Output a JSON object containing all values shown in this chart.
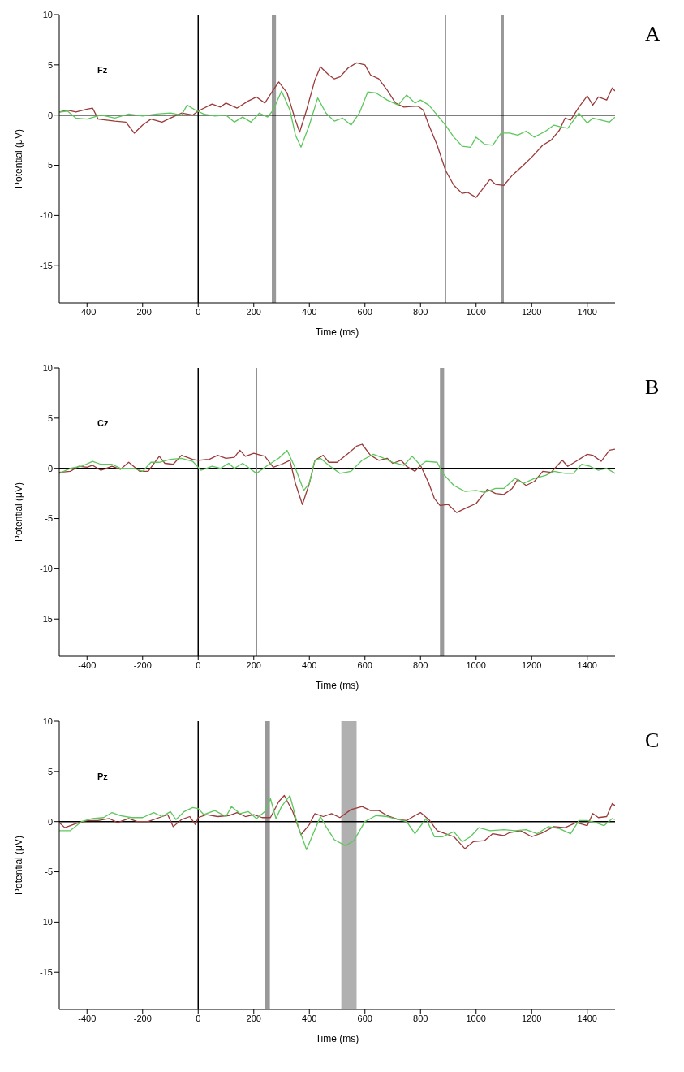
{
  "chart_data": [
    {
      "type": "line",
      "title": "Fz",
      "annotations": [
        "A"
      ],
      "xlabel": "Time (ms)",
      "ylabel": "Potential (μV)",
      "xlim": [
        -500,
        1500
      ],
      "ylim": [
        -18.7,
        10
      ],
      "xticks": [
        -400,
        -200,
        0,
        200,
        400,
        600,
        800,
        1000,
        1200,
        1400
      ],
      "yticks": [
        -15,
        -10,
        -5,
        0,
        5,
        10
      ],
      "grid": false,
      "legend": false,
      "ref_lines": [
        {
          "axis": "x",
          "value": 0,
          "color": "#000000"
        },
        {
          "axis": "y",
          "value": 0,
          "color": "#000000"
        },
        {
          "axis": "x",
          "value": 890,
          "color": "#888888"
        }
      ],
      "bands": [
        {
          "axis": "x",
          "from": 265,
          "to": 280,
          "color": "#999999"
        },
        {
          "axis": "x",
          "from": 1090,
          "to": 1100,
          "color": "#999999"
        }
      ],
      "series": [
        {
          "color": "#9b3a3a",
          "x": [
            -500,
            -470,
            -440,
            -400,
            -380,
            -360,
            -330,
            -300,
            -260,
            -230,
            -200,
            -170,
            -130,
            -100,
            -60,
            -20,
            0,
            50,
            80,
            100,
            140,
            180,
            210,
            240,
            270,
            290,
            320,
            350,
            365,
            390,
            420,
            440,
            470,
            490,
            510,
            540,
            570,
            600,
            620,
            650,
            680,
            710,
            740,
            790,
            810,
            830,
            860,
            890,
            920,
            950,
            970,
            1000,
            1020,
            1050,
            1070,
            1100,
            1130,
            1170,
            1200,
            1240,
            1270,
            1300,
            1320,
            1340,
            1370,
            1400,
            1420,
            1440,
            1470,
            1490,
            1500
          ],
          "values": [
            0.3,
            0.5,
            0.3,
            0.6,
            0.7,
            -0.4,
            -0.5,
            -0.6,
            -0.7,
            -1.8,
            -1.0,
            -0.4,
            -0.7,
            -0.3,
            0.2,
            0,
            0.4,
            1.1,
            0.8,
            1.2,
            0.7,
            1.4,
            1.8,
            1.2,
            2.5,
            3.3,
            2.2,
            -0.5,
            -1.7,
            0.5,
            3.5,
            4.8,
            4.0,
            3.6,
            3.8,
            4.7,
            5.2,
            5.0,
            4.0,
            3.6,
            2.5,
            1.2,
            0.8,
            0.9,
            0.5,
            -1.0,
            -3.0,
            -5.5,
            -7.0,
            -7.8,
            -7.7,
            -8.2,
            -7.5,
            -6.4,
            -6.9,
            -7.0,
            -6.0,
            -5.0,
            -4.2,
            -3.0,
            -2.5,
            -1.5,
            -0.3,
            -0.5,
            0.8,
            1.9,
            1.0,
            1.8,
            1.5,
            2.7,
            2.4
          ]
        },
        {
          "color": "#5cc85c",
          "x": [
            -500,
            -470,
            -440,
            -400,
            -350,
            -300,
            -250,
            -200,
            -150,
            -100,
            -60,
            -40,
            -10,
            20,
            60,
            100,
            130,
            160,
            190,
            220,
            250,
            270,
            300,
            330,
            350,
            370,
            400,
            430,
            460,
            490,
            520,
            550,
            580,
            610,
            640,
            680,
            720,
            750,
            780,
            800,
            830,
            860,
            890,
            920,
            950,
            980,
            1000,
            1030,
            1060,
            1090,
            1120,
            1150,
            1180,
            1210,
            1250,
            1280,
            1310,
            1330,
            1370,
            1400,
            1420,
            1450,
            1480,
            1500
          ],
          "values": [
            0.3,
            0.4,
            -0.3,
            -0.4,
            0,
            -0.3,
            0.1,
            -0.1,
            0.1,
            0.2,
            0,
            1.0,
            0.5,
            0.1,
            -0.1,
            0,
            -0.7,
            -0.2,
            -0.7,
            0.2,
            -0.2,
            0.5,
            2.4,
            0.5,
            -2.0,
            -3.2,
            -1.0,
            1.7,
            0.2,
            -0.6,
            -0.3,
            -1.0,
            0.2,
            2.3,
            2.2,
            1.5,
            1.0,
            2.0,
            1.2,
            1.5,
            1.0,
            0,
            -1.0,
            -2.2,
            -3.1,
            -3.2,
            -2.2,
            -2.9,
            -3.0,
            -1.8,
            -1.8,
            -2.0,
            -1.6,
            -2.2,
            -1.6,
            -1.0,
            -1.2,
            -1.3,
            0.2,
            -0.8,
            -0.3,
            -0.5,
            -0.7,
            -0.2
          ]
        }
      ]
    },
    {
      "type": "line",
      "title": "Cz",
      "annotations": [
        "B"
      ],
      "xlabel": "Time (ms)",
      "ylabel": "Potential (μV)",
      "xlim": [
        -500,
        1500
      ],
      "ylim": [
        -18.7,
        10
      ],
      "xticks": [
        -400,
        -200,
        0,
        200,
        400,
        600,
        800,
        1000,
        1200,
        1400
      ],
      "yticks": [
        -15,
        -10,
        -5,
        0,
        5,
        10
      ],
      "grid": false,
      "legend": false,
      "ref_lines": [
        {
          "axis": "x",
          "value": 0,
          "color": "#000000"
        },
        {
          "axis": "y",
          "value": 0,
          "color": "#000000"
        },
        {
          "axis": "x",
          "value": 210,
          "color": "#888888"
        }
      ],
      "bands": [
        {
          "axis": "x",
          "from": 870,
          "to": 885,
          "color": "#999999"
        }
      ],
      "series": [
        {
          "color": "#9b3a3a",
          "x": [
            -500,
            -460,
            -430,
            -400,
            -380,
            -350,
            -310,
            -280,
            -250,
            -210,
            -180,
            -140,
            -120,
            -90,
            -60,
            -20,
            0,
            40,
            70,
            100,
            130,
            150,
            170,
            200,
            240,
            270,
            300,
            330,
            350,
            375,
            400,
            420,
            450,
            470,
            500,
            540,
            570,
            590,
            620,
            650,
            680,
            700,
            730,
            750,
            780,
            800,
            830,
            850,
            870,
            900,
            930,
            960,
            1000,
            1040,
            1070,
            1100,
            1130,
            1150,
            1180,
            1210,
            1240,
            1270,
            1310,
            1330,
            1360,
            1400,
            1420,
            1450,
            1480,
            1500
          ],
          "values": [
            -0.4,
            -0.3,
            0.2,
            0.1,
            0.3,
            -0.2,
            0.2,
            -0.1,
            0.6,
            -0.3,
            -0.3,
            1.2,
            0.5,
            0.4,
            1.3,
            0.9,
            0.8,
            0.9,
            1.3,
            1.0,
            1.1,
            1.8,
            1.2,
            1.5,
            1.2,
            0.1,
            0.4,
            0.8,
            -1.5,
            -3.6,
            -1.5,
            0.8,
            1.3,
            0.6,
            0.6,
            1.5,
            2.2,
            2.4,
            1.3,
            0.8,
            1.0,
            0.5,
            0.8,
            0.2,
            -0.3,
            0.3,
            -1.5,
            -3.0,
            -3.7,
            -3.6,
            -4.4,
            -4.0,
            -3.5,
            -2.1,
            -2.5,
            -2.6,
            -2.0,
            -1.1,
            -1.7,
            -1.3,
            -0.3,
            -0.4,
            0.8,
            0.2,
            0.7,
            1.4,
            1.3,
            0.7,
            1.8,
            1.9
          ]
        },
        {
          "color": "#5cc85c",
          "x": [
            -500,
            -460,
            -420,
            -380,
            -350,
            -310,
            -280,
            -230,
            -200,
            -170,
            -140,
            -100,
            -60,
            -20,
            10,
            50,
            80,
            110,
            130,
            160,
            190,
            210,
            250,
            290,
            320,
            350,
            380,
            400,
            420,
            440,
            470,
            510,
            550,
            590,
            630,
            660,
            700,
            740,
            770,
            800,
            820,
            860,
            880,
            920,
            960,
            1000,
            1030,
            1070,
            1100,
            1140,
            1170,
            1210,
            1250,
            1280,
            1320,
            1350,
            1380,
            1410,
            1440,
            1470,
            1500
          ],
          "values": [
            -0.5,
            0,
            0.2,
            0.7,
            0.4,
            0.4,
            0,
            0,
            -0.3,
            0.6,
            0.6,
            0.9,
            1.0,
            0.7,
            -0.2,
            0.2,
            0,
            0.5,
            0,
            0.5,
            -0.1,
            -0.5,
            0.3,
            1.0,
            1.8,
            0,
            -2.2,
            -1.5,
            0.8,
            1.0,
            0.3,
            -0.5,
            -0.3,
            0.8,
            1.4,
            1.1,
            0.6,
            0.3,
            1.2,
            0.3,
            0.7,
            0.6,
            -0.5,
            -1.7,
            -2.3,
            -2.2,
            -2.4,
            -2.0,
            -2.0,
            -1.0,
            -1.5,
            -1.0,
            -0.7,
            -0.3,
            -0.5,
            -0.5,
            0.4,
            0.2,
            -0.2,
            0,
            -0.5
          ]
        }
      ]
    },
    {
      "type": "line",
      "title": "Pz",
      "annotations": [
        "C"
      ],
      "xlabel": "Time (ms)",
      "ylabel": "Potential (μV)",
      "xlim": [
        -500,
        1500
      ],
      "ylim": [
        -18.7,
        10
      ],
      "xticks": [
        -400,
        -200,
        0,
        200,
        400,
        600,
        800,
        1000,
        1200,
        1400
      ],
      "yticks": [
        -15,
        -10,
        -5,
        0,
        5,
        10
      ],
      "grid": false,
      "legend": false,
      "ref_lines": [
        {
          "axis": "x",
          "value": 0,
          "color": "#000000"
        },
        {
          "axis": "y",
          "value": 0,
          "color": "#000000"
        }
      ],
      "bands": [
        {
          "axis": "x",
          "from": 240,
          "to": 258,
          "color": "#999999"
        },
        {
          "axis": "x",
          "from": 515,
          "to": 570,
          "color": "#b0b0b0"
        }
      ],
      "series": [
        {
          "color": "#9b3a3a",
          "x": [
            -500,
            -480,
            -440,
            -400,
            -360,
            -320,
            -290,
            -250,
            -220,
            -180,
            -130,
            -110,
            -90,
            -60,
            -30,
            -10,
            0,
            30,
            70,
            110,
            140,
            170,
            200,
            230,
            260,
            290,
            310,
            340,
            370,
            400,
            420,
            450,
            480,
            510,
            550,
            590,
            620,
            650,
            680,
            720,
            750,
            780,
            800,
            830,
            860,
            890,
            920,
            940,
            960,
            990,
            1030,
            1060,
            1100,
            1120,
            1160,
            1200,
            1240,
            1280,
            1320,
            1360,
            1400,
            1420,
            1440,
            1470,
            1490,
            1500
          ],
          "values": [
            -0.1,
            -0.6,
            -0.2,
            0.1,
            0.1,
            0.3,
            -0.1,
            0.3,
            0,
            0,
            0.5,
            0.7,
            -0.5,
            0.2,
            0.5,
            -0.3,
            0.4,
            0.7,
            0.5,
            0.6,
            0.9,
            0.5,
            0.7,
            0.4,
            0.4,
            2.0,
            2.6,
            1.0,
            -1.3,
            -0.3,
            0.8,
            0.5,
            0.8,
            0.4,
            1.2,
            1.5,
            1.1,
            1.1,
            0.6,
            0.2,
            0.1,
            0.6,
            0.9,
            0.2,
            -0.9,
            -1.2,
            -1.5,
            -2.1,
            -2.7,
            -2.0,
            -1.9,
            -1.2,
            -1.4,
            -1.1,
            -0.9,
            -1.5,
            -1.1,
            -0.5,
            -0.6,
            -0.1,
            -0.4,
            0.8,
            0.4,
            0.5,
            1.8,
            1.6
          ]
        },
        {
          "color": "#5cc85c",
          "x": [
            -500,
            -460,
            -420,
            -380,
            -340,
            -310,
            -280,
            -240,
            -200,
            -160,
            -130,
            -100,
            -80,
            -50,
            -20,
            0,
            20,
            60,
            100,
            120,
            150,
            180,
            210,
            240,
            260,
            280,
            300,
            330,
            360,
            390,
            420,
            440,
            460,
            490,
            530,
            560,
            600,
            640,
            680,
            720,
            750,
            780,
            820,
            850,
            880,
            920,
            950,
            980,
            1010,
            1050,
            1100,
            1140,
            1180,
            1220,
            1260,
            1300,
            1340,
            1370,
            1400,
            1430,
            1460,
            1490,
            1500
          ],
          "values": [
            -0.9,
            -0.9,
            0,
            0.3,
            0.4,
            0.9,
            0.6,
            0.4,
            0.4,
            0.9,
            0.5,
            1.0,
            0.2,
            1.0,
            1.4,
            1.3,
            0.7,
            1.1,
            0.5,
            1.5,
            0.8,
            1.0,
            0.3,
            1.0,
            2.3,
            0.3,
            1.5,
            2.6,
            -0.5,
            -2.8,
            -0.8,
            0.5,
            -0.5,
            -1.8,
            -2.4,
            -1.9,
            0,
            0.6,
            0.5,
            0.2,
            0,
            -1.2,
            0.3,
            -1.5,
            -1.5,
            -1.0,
            -2.0,
            -1.5,
            -0.6,
            -0.9,
            -0.8,
            -0.9,
            -0.8,
            -1.2,
            -0.5,
            -0.7,
            -1.2,
            0.1,
            0.1,
            -0.1,
            -0.4,
            0.3,
            0.2
          ]
        }
      ]
    }
  ]
}
